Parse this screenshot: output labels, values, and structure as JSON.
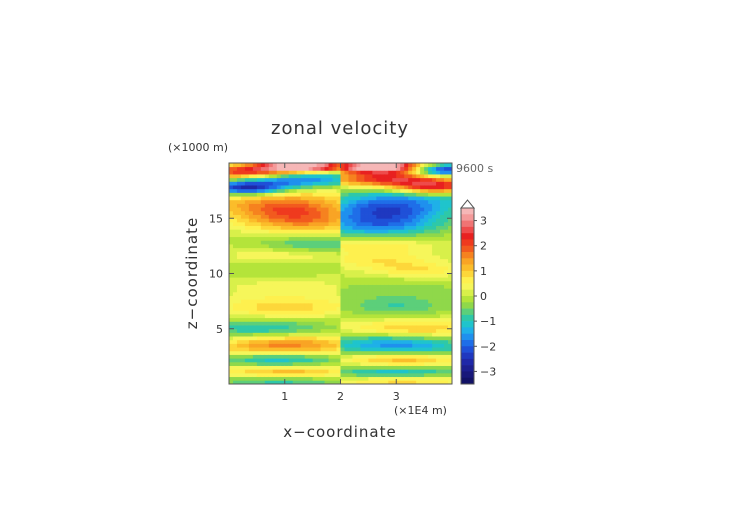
{
  "chart_data": {
    "type": "heatmap",
    "title": "zonal velocity",
    "xlabel": "x−coordinate",
    "ylabel": "z−coordinate",
    "x_unit": "(×1E4 m)",
    "y_unit": "(×1000 m)",
    "time_label": "9600 s",
    "xlim": [
      0,
      4
    ],
    "ylim": [
      0,
      20
    ],
    "x_ticks": [
      1,
      2,
      3
    ],
    "x_tick_labels": [
      "1",
      "2",
      "3"
    ],
    "y_ticks": [
      5,
      10,
      15
    ],
    "y_tick_labels": [
      "5",
      "10",
      "15"
    ],
    "colorbar": {
      "ticks": [
        3,
        2,
        1,
        0,
        -1,
        -2,
        -3
      ],
      "tick_labels": [
        "3",
        "2",
        "1",
        "0",
        "−1",
        "−2",
        "−3"
      ],
      "range": [
        -3.5,
        3.5
      ],
      "bins": [
        {
          "lo": 3.25,
          "hi": 3.5,
          "color": "#f6b7b7"
        },
        {
          "lo": 3.0,
          "hi": 3.25,
          "color": "#f49a9a"
        },
        {
          "lo": 2.75,
          "hi": 3.0,
          "color": "#f07474"
        },
        {
          "lo": 2.5,
          "hi": 2.75,
          "color": "#ee4b4b"
        },
        {
          "lo": 2.25,
          "hi": 2.5,
          "color": "#e82020"
        },
        {
          "lo": 2.0,
          "hi": 2.25,
          "color": "#ef3a1e"
        },
        {
          "lo": 1.75,
          "hi": 2.0,
          "color": "#f25a1e"
        },
        {
          "lo": 1.5,
          "hi": 1.75,
          "color": "#f6821f"
        },
        {
          "lo": 1.25,
          "hi": 1.5,
          "color": "#f9a424"
        },
        {
          "lo": 1.0,
          "hi": 1.25,
          "color": "#fbbd2a"
        },
        {
          "lo": 0.75,
          "hi": 1.0,
          "color": "#fdd73a"
        },
        {
          "lo": 0.5,
          "hi": 0.75,
          "color": "#fef04e"
        },
        {
          "lo": 0.25,
          "hi": 0.5,
          "color": "#f6f65a"
        },
        {
          "lo": 0.0,
          "hi": 0.25,
          "color": "#d8f04a"
        },
        {
          "lo": -0.25,
          "hi": 0.0,
          "color": "#b4e43a"
        },
        {
          "lo": -0.5,
          "hi": -0.25,
          "color": "#8fd84a"
        },
        {
          "lo": -0.75,
          "hi": -0.5,
          "color": "#5ccf7a"
        },
        {
          "lo": -1.0,
          "hi": -0.75,
          "color": "#2ec8a8"
        },
        {
          "lo": -1.25,
          "hi": -1.0,
          "color": "#1fc4cc"
        },
        {
          "lo": -1.5,
          "hi": -1.25,
          "color": "#1fb0e8"
        },
        {
          "lo": -1.75,
          "hi": -1.5,
          "color": "#1f90ee"
        },
        {
          "lo": -2.0,
          "hi": -1.75,
          "color": "#1f6ee8"
        },
        {
          "lo": -2.25,
          "hi": -2.0,
          "color": "#1f50d8"
        },
        {
          "lo": -2.5,
          "hi": -2.25,
          "color": "#1f38c0"
        },
        {
          "lo": -2.75,
          "hi": -2.5,
          "color": "#1f28a8"
        },
        {
          "lo": -3.0,
          "hi": -2.75,
          "color": "#1c1f90"
        },
        {
          "lo": -3.25,
          "hi": -3.0,
          "color": "#18187a"
        },
        {
          "lo": -3.5,
          "hi": -3.25,
          "color": "#121266"
        }
      ]
    },
    "bands_left": [
      {
        "z": 19.7,
        "amp": 4.0,
        "wz": 0.35,
        "x0": 1.3,
        "wx": 0.6
      },
      {
        "z": 19.1,
        "amp": 2.6,
        "wz": 0.45,
        "x0": 0.3,
        "wx": 0.7
      },
      {
        "z": 18.6,
        "amp": -2.3,
        "wz": 0.55,
        "x0": 1.1,
        "wx": 0.8
      },
      {
        "z": 17.7,
        "amp": -2.8,
        "wz": 0.45,
        "x0": 0.3,
        "wx": 0.5
      },
      {
        "z": 17.0,
        "amp": 0.9,
        "wz": 0.8,
        "x0": 0.5,
        "wx": 1.2
      },
      {
        "z": 15.7,
        "amp": 1.7,
        "wz": 0.8,
        "x0": 1.1,
        "wx": 0.8
      },
      {
        "z": 14.5,
        "amp": 1.0,
        "wz": 0.7,
        "x0": 1.4,
        "wx": 0.8
      },
      {
        "z": 12.7,
        "amp": -0.8,
        "wz": 0.5,
        "x0": 1.5,
        "wx": 0.7
      },
      {
        "z": 11.5,
        "amp": 0.6,
        "wz": 0.6,
        "x0": 0.8,
        "wx": 0.8
      },
      {
        "z": 10.5,
        "amp": -0.4,
        "wz": 0.8,
        "x0": 0.6,
        "wx": 1.0
      },
      {
        "z": 9.0,
        "amp": 0.4,
        "wz": 0.7,
        "x0": 1.0,
        "wx": 1.0
      },
      {
        "z": 7.0,
        "amp": 0.9,
        "wz": 0.7,
        "x0": 1.0,
        "wx": 0.9
      },
      {
        "z": 5.0,
        "amp": -1.1,
        "wz": 0.6,
        "x0": 0.6,
        "wx": 0.9
      },
      {
        "z": 4.0,
        "amp": 0.8,
        "wz": 0.6,
        "x0": 1.2,
        "wx": 0.9
      },
      {
        "z": 3.2,
        "amp": 1.4,
        "wz": 0.6,
        "x0": 0.9,
        "wx": 0.9
      },
      {
        "z": 2.2,
        "amp": -1.6,
        "wz": 0.6,
        "x0": 0.9,
        "wx": 0.8
      },
      {
        "z": 1.2,
        "amp": 1.5,
        "wz": 0.5,
        "x0": 1.0,
        "wx": 0.9
      },
      {
        "z": 0.3,
        "amp": -1.0,
        "wz": 0.4,
        "x0": 0.9,
        "wx": 0.9
      }
    ],
    "bands_right": [
      {
        "z": 19.7,
        "amp": 4.0,
        "wz": 0.35,
        "x0": 2.7,
        "wx": 0.6
      },
      {
        "z": 19.4,
        "amp": -3.0,
        "wz": 0.4,
        "x0": 3.8,
        "wx": 0.4
      },
      {
        "z": 18.6,
        "amp": 2.5,
        "wz": 0.55,
        "x0": 2.9,
        "wx": 0.8
      },
      {
        "z": 17.8,
        "amp": 2.5,
        "wz": 0.45,
        "x0": 3.7,
        "wx": 0.5
      },
      {
        "z": 17.0,
        "amp": -1.0,
        "wz": 0.8,
        "x0": 3.3,
        "wx": 1.0
      },
      {
        "z": 15.6,
        "amp": -2.0,
        "wz": 0.9,
        "x0": 2.8,
        "wx": 0.8
      },
      {
        "z": 14.2,
        "amp": -1.2,
        "wz": 0.7,
        "x0": 2.6,
        "wx": 0.8
      },
      {
        "z": 12.6,
        "amp": 0.7,
        "wz": 0.5,
        "x0": 2.6,
        "wx": 0.7
      },
      {
        "z": 11.3,
        "amp": 0.7,
        "wz": 0.6,
        "x0": 2.7,
        "wx": 0.7
      },
      {
        "z": 10.3,
        "amp": 0.7,
        "wz": 0.5,
        "x0": 3.4,
        "wx": 0.6
      },
      {
        "z": 8.5,
        "amp": -0.4,
        "wz": 0.8,
        "x0": 3.0,
        "wx": 1.0
      },
      {
        "z": 7.0,
        "amp": -0.7,
        "wz": 0.6,
        "x0": 3.0,
        "wx": 0.7
      },
      {
        "z": 5.0,
        "amp": 1.1,
        "wz": 0.6,
        "x0": 3.3,
        "wx": 0.9
      },
      {
        "z": 4.0,
        "amp": -0.8,
        "wz": 0.6,
        "x0": 2.8,
        "wx": 0.9
      },
      {
        "z": 3.2,
        "amp": -1.4,
        "wz": 0.6,
        "x0": 3.1,
        "wx": 0.9
      },
      {
        "z": 2.2,
        "amp": 1.6,
        "wz": 0.6,
        "x0": 3.1,
        "wx": 0.8
      },
      {
        "z": 1.2,
        "amp": -1.5,
        "wz": 0.5,
        "x0": 3.0,
        "wx": 0.9
      },
      {
        "z": 0.3,
        "amp": 1.0,
        "wz": 0.4,
        "x0": 3.1,
        "wx": 0.9
      }
    ]
  }
}
